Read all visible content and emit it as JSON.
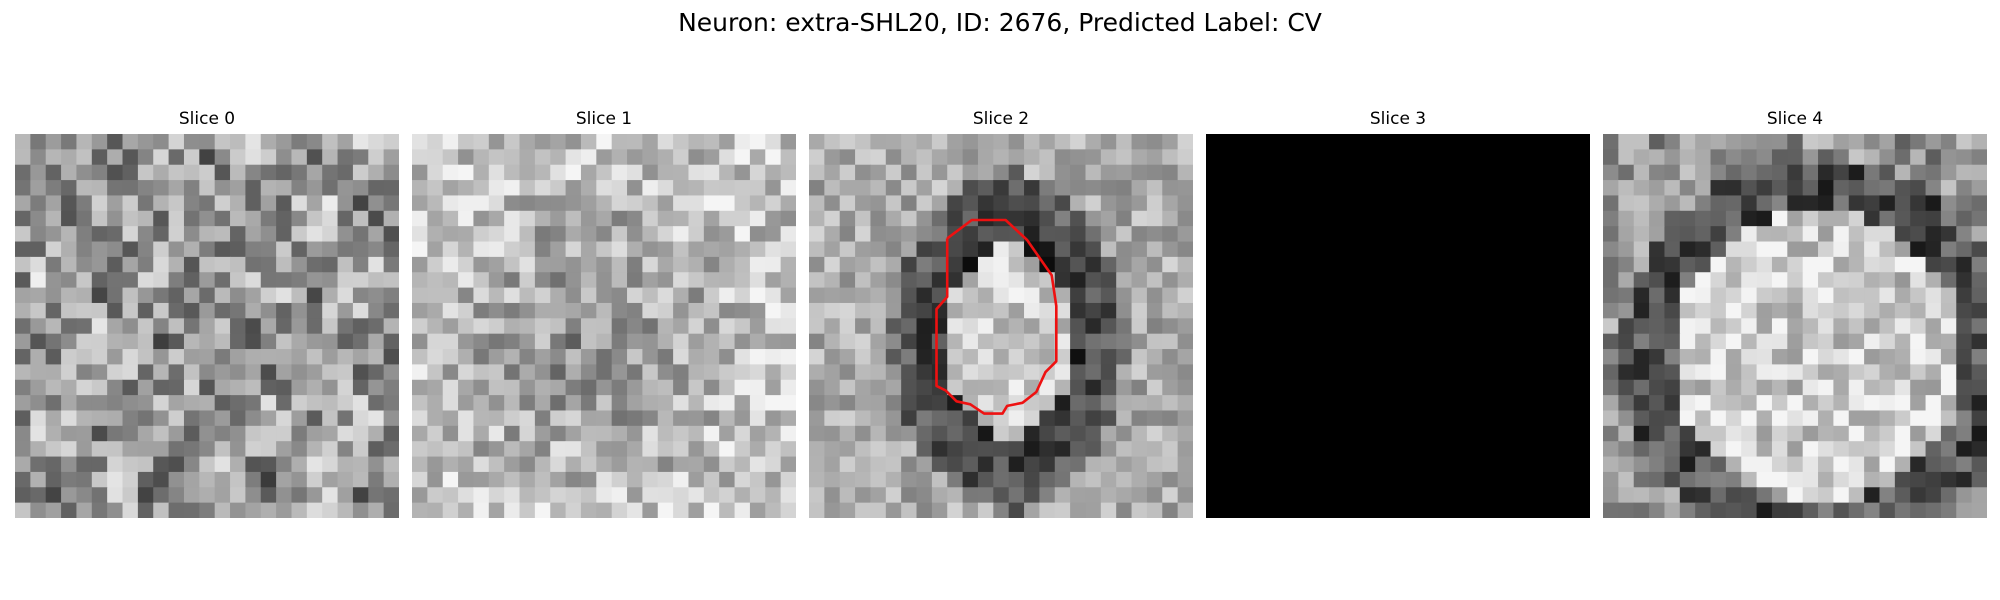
{
  "figure": {
    "title": "Neuron: extra-SHL20, ID: 2676, Predicted Label: CV"
  },
  "colors": {
    "background": "#ffffff",
    "contour": "#ee1111"
  },
  "grid_size": 25,
  "slices": [
    {
      "title": "Slice 0",
      "pattern": "texture",
      "seed": 11,
      "contour": false
    },
    {
      "title": "Slice 1",
      "pattern": "dim-center",
      "seed": 23,
      "contour": false
    },
    {
      "title": "Slice 2",
      "pattern": "bright-blob",
      "seed": 37,
      "contour": true
    },
    {
      "title": "Slice 3",
      "pattern": "black",
      "seed": 0,
      "contour": false
    },
    {
      "title": "Slice 4",
      "pattern": "bright-disc",
      "seed": 51,
      "contour": false
    }
  ]
}
